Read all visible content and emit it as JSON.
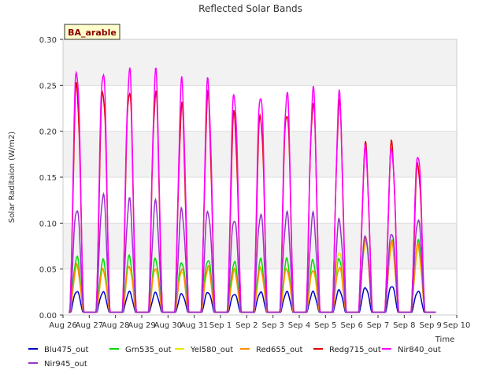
{
  "chart_data": {
    "type": "line",
    "title": "Reflected Solar Bands",
    "xlabel": "Time",
    "ylabel": "Solar Raditaion (W/m2)",
    "site_label": "BA_arable",
    "ylim": [
      0,
      0.3
    ],
    "yticks": [
      "0.00",
      "0.05",
      "0.10",
      "0.15",
      "0.20",
      "0.25",
      "0.30"
    ],
    "xlim": [
      0,
      15
    ],
    "xticks": [
      "Aug 26",
      "Aug 27",
      "Aug 28",
      "Aug 29",
      "Aug 30",
      "Aug 31",
      "Sep 1",
      "Sep 2",
      "Sep 3",
      "Sep 4",
      "Sep 5",
      "Sep 6",
      "Sep 7",
      "Sep 8",
      "Sep 9",
      "Sep 10"
    ],
    "grid": "horizontal bands",
    "legend_position": "bottom",
    "peak_days": [
      "Aug 26",
      "Aug 27",
      "Aug 28",
      "Aug 29",
      "Aug 30",
      "Aug 31",
      "Sep 1",
      "Sep 2",
      "Sep 3",
      "Sep 4",
      "Sep 5",
      "Sep 6",
      "Sep 7",
      "Sep 8"
    ],
    "series": [
      {
        "name": "Blu475_out",
        "color": "#0000cc",
        "peaks": [
          0.026,
          0.025,
          0.025,
          0.024,
          0.023,
          0.025,
          0.023,
          0.025,
          0.025,
          0.025,
          0.027,
          0.03,
          0.032,
          0.026
        ]
      },
      {
        "name": "Grn535_out",
        "color": "#00dd00",
        "peaks": [
          0.063,
          0.059,
          0.063,
          0.061,
          0.058,
          0.061,
          0.058,
          0.06,
          0.06,
          0.059,
          0.062,
          0.085,
          0.082,
          0.08
        ]
      },
      {
        "name": "Yel580_out",
        "color": "#e8e800",
        "peaks": [
          0.052,
          0.048,
          0.052,
          0.05,
          0.048,
          0.05,
          0.047,
          0.049,
          0.049,
          0.048,
          0.07,
          0.08,
          0.075,
          0.072
        ]
      },
      {
        "name": "Red655_out",
        "color": "#ff8c00",
        "peaks": [
          0.054,
          0.05,
          0.054,
          0.052,
          0.05,
          0.052,
          0.049,
          0.051,
          0.051,
          0.05,
          0.052,
          0.082,
          0.078,
          0.076
        ]
      },
      {
        "name": "Redg715_out",
        "color": "#e00000",
        "peaks": [
          0.25,
          0.248,
          0.249,
          0.243,
          0.225,
          0.236,
          0.218,
          0.22,
          0.225,
          0.232,
          0.229,
          0.182,
          0.185,
          0.165
        ]
      },
      {
        "name": "Nir840_out",
        "color": "#ff00ff",
        "peaks": [
          0.27,
          0.27,
          0.268,
          0.261,
          0.25,
          0.253,
          0.243,
          0.245,
          0.244,
          0.243,
          0.236,
          0.18,
          0.182,
          0.178
        ]
      },
      {
        "name": "Nir945_out",
        "color": "#9933cc",
        "peaks": [
          0.117,
          0.131,
          0.124,
          0.121,
          0.114,
          0.114,
          0.106,
          0.11,
          0.11,
          0.108,
          0.102,
          0.086,
          0.091,
          0.105
        ]
      }
    ]
  }
}
